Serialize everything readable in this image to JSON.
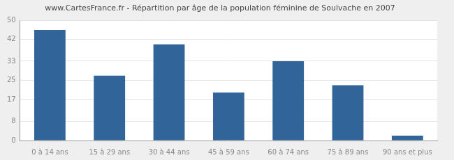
{
  "chart_data": {
    "type": "bar",
    "title": "www.CartesFrance.fr - Répartition par âge de la population féminine de Soulvache en 2007",
    "categories": [
      "0 à 14 ans",
      "15 à 29 ans",
      "30 à 44 ans",
      "45 à 59 ans",
      "60 à 74 ans",
      "75 à 89 ans",
      "90 ans et plus"
    ],
    "values": [
      46,
      27,
      40,
      20,
      33,
      23,
      2
    ],
    "color": "#31659a",
    "ylim": [
      0,
      50
    ],
    "yticks": [
      0,
      8,
      17,
      25,
      33,
      42,
      50
    ],
    "grid": true
  }
}
